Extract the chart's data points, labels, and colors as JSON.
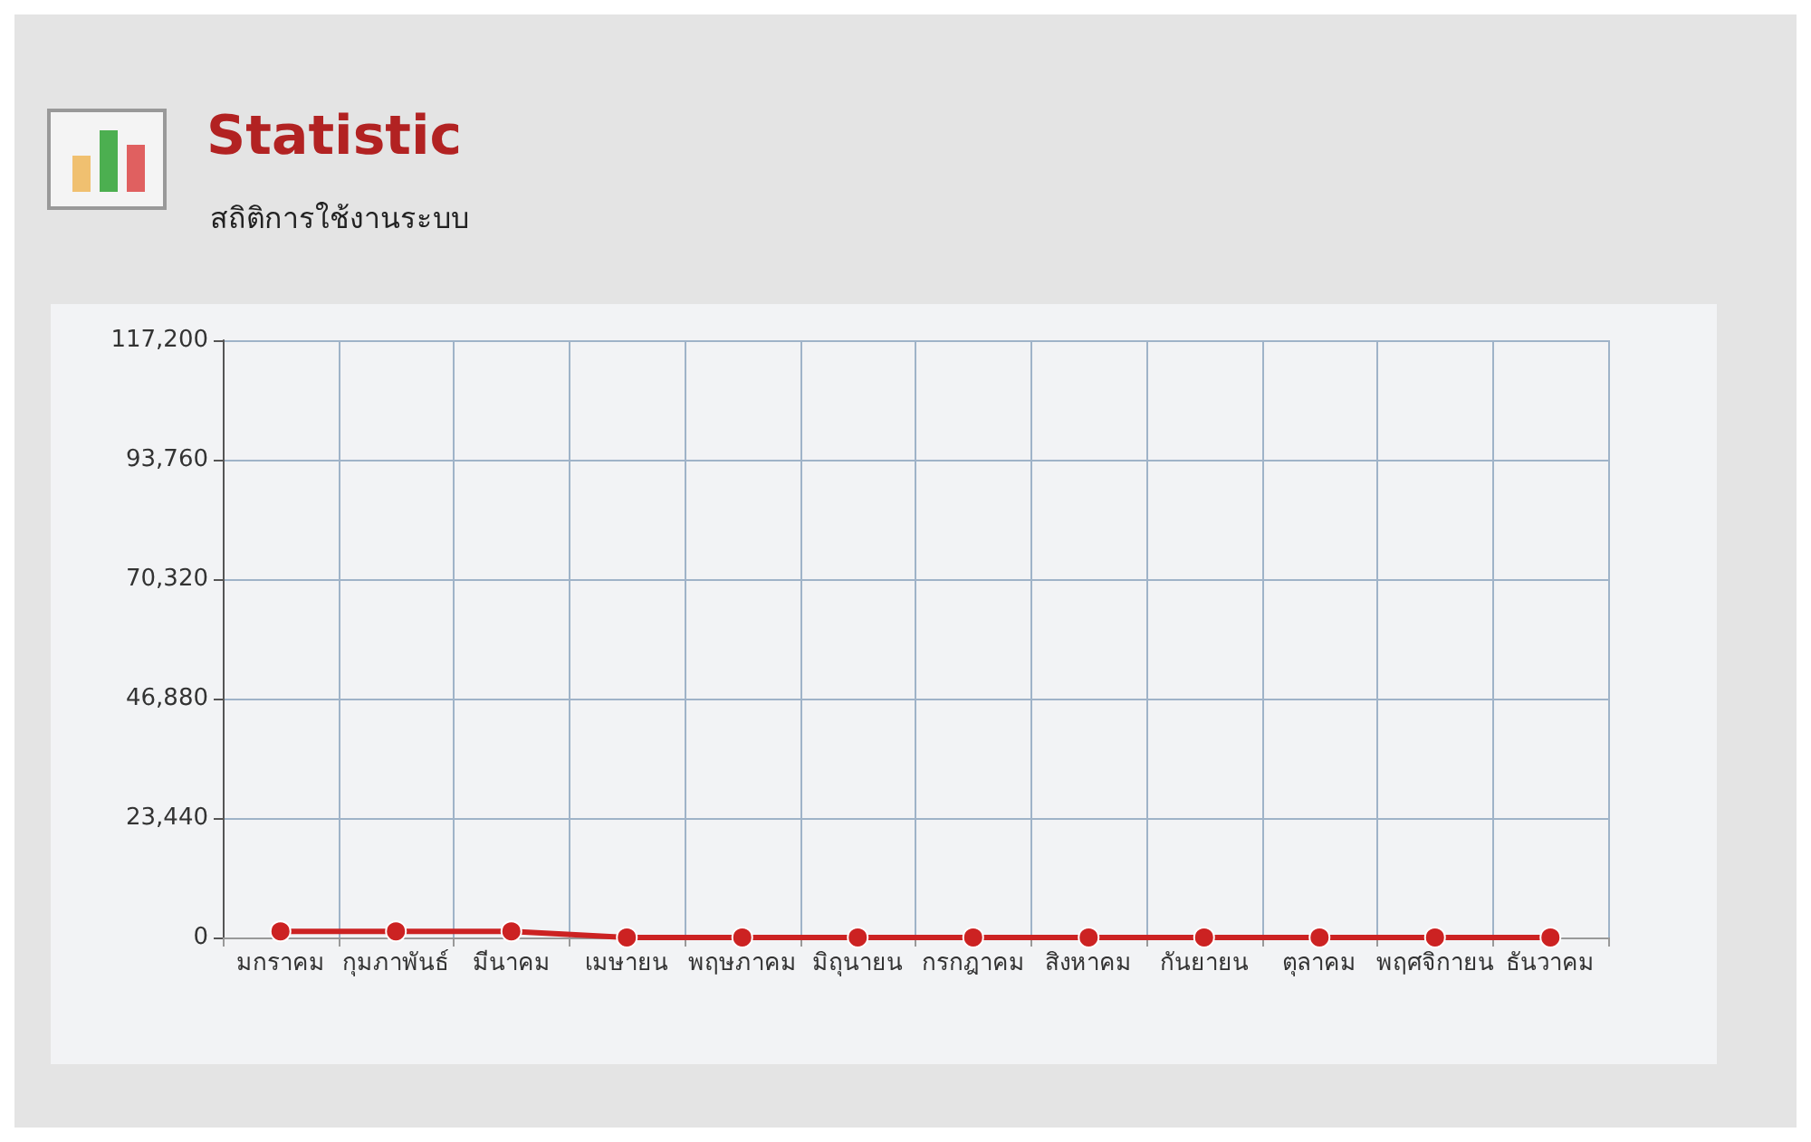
{
  "chart_data": {
    "type": "line",
    "title": "Statistic",
    "subtitle": "สถิติการใช้งานระบบ",
    "categories": [
      "มกราคม",
      "กุมภาพันธ์",
      "มีนาคม",
      "เมษายน",
      "พฤษภาคม",
      "มิถุนายน",
      "กรกฎาคม",
      "สิงหาคม",
      "กันยายน",
      "ตุลาคม",
      "พฤศจิกายน",
      "ธันวาคม"
    ],
    "series": [
      {
        "color": "#cc2222",
        "values": [
          1200,
          1200,
          1200,
          0,
          0,
          0,
          0,
          0,
          0,
          0,
          0,
          0
        ]
      }
    ],
    "ylim": [
      0,
      117200
    ],
    "yticks": [
      0,
      {
        "value": 23440,
        "label": "23,440"
      },
      {
        "value": 46880,
        "label": "46,880"
      },
      {
        "value": 70320,
        "label": "70,320"
      },
      {
        "value": 93760,
        "label": "93,760"
      },
      {
        "value": 117200,
        "label": "117,200"
      }
    ],
    "grid": true,
    "marker": "circle",
    "line_style": "solid"
  }
}
